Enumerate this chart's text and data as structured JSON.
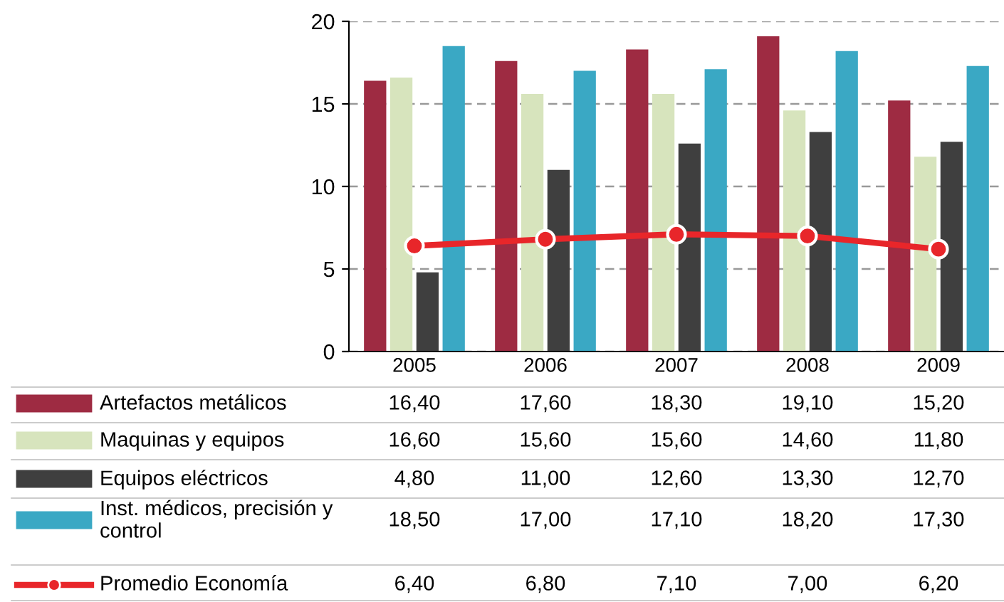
{
  "chart_data": {
    "type": "bar",
    "categories": [
      "2005",
      "2006",
      "2007",
      "2008",
      "2009"
    ],
    "ylim": [
      0,
      20
    ],
    "yticks": [
      0,
      5,
      10,
      15,
      20
    ],
    "grid": "y",
    "legend": "bottom",
    "series": [
      {
        "name": "Artefactos metálicos",
        "color": "#9e2b42",
        "values": [
          16.4,
          17.6,
          18.3,
          19.1,
          15.2
        ],
        "value_labels": [
          "16,40",
          "17,60",
          "18,30",
          "19,10",
          "15,20"
        ]
      },
      {
        "name": "Maquinas y equipos",
        "color": "#d7e4bd",
        "values": [
          16.6,
          15.6,
          15.6,
          14.6,
          11.8
        ],
        "value_labels": [
          "16,60",
          "15,60",
          "15,60",
          "14,60",
          "11,80"
        ]
      },
      {
        "name": "Equipos eléctricos",
        "color": "#3f3f3f",
        "values": [
          4.8,
          11.0,
          12.6,
          13.3,
          12.7
        ],
        "value_labels": [
          "4,80",
          "11,00",
          "12,60",
          "13,30",
          "12,70"
        ]
      },
      {
        "name": "Inst. médicos, precisión y\ncontrol",
        "color": "#3aa8c4",
        "values": [
          18.5,
          17.0,
          17.1,
          18.2,
          17.3
        ],
        "value_labels": [
          "18,50",
          "17,00",
          "17,10",
          "18,20",
          "17,30"
        ]
      },
      {
        "name": "Promedio Economía",
        "type": "line",
        "color": "#e8262a",
        "marker": "circle",
        "values": [
          6.4,
          6.8,
          7.1,
          7.0,
          6.2
        ],
        "value_labels": [
          "6,40",
          "6,80",
          "7,10",
          "7,00",
          "6,20"
        ]
      }
    ]
  }
}
